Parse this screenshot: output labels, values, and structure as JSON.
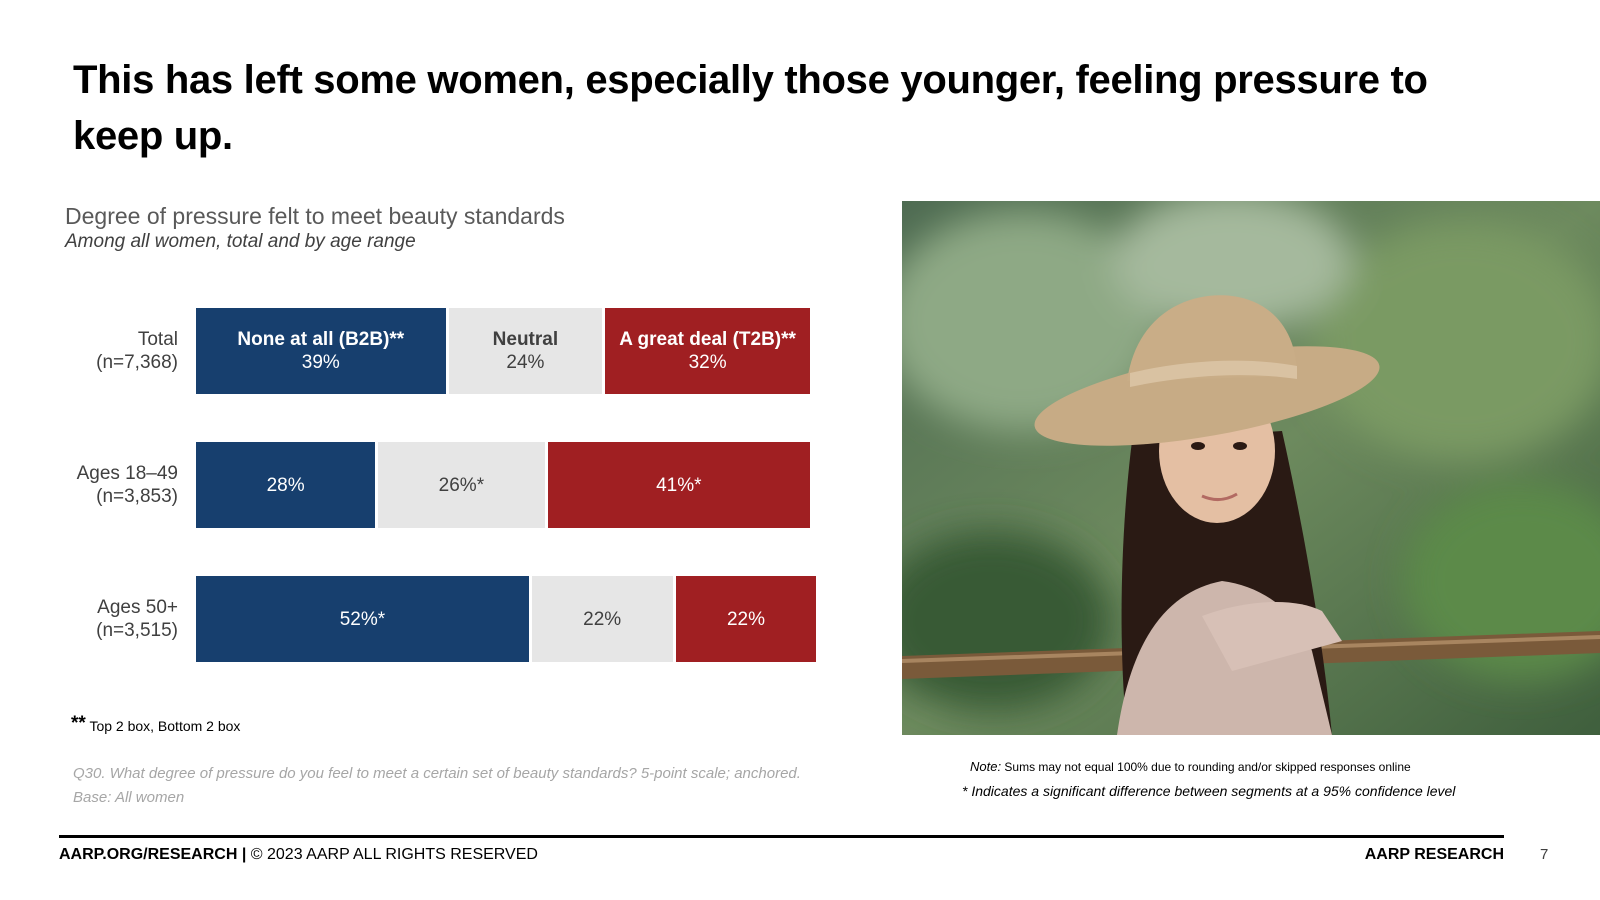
{
  "title": "This has left some women, especially those younger, feeling pressure to keep up.",
  "chart_data": {
    "type": "bar",
    "orientation": "horizontal-stacked",
    "title": "Degree of pressure felt to meet beauty standards",
    "subtitle": "Among all women, total and by age range",
    "categories": [
      "Total (n=7,368)",
      "Ages 18–49 (n=3,853)",
      "Ages 50+ (n=3,515)"
    ],
    "category_labels": [
      {
        "name": "Total",
        "n": "(n=7,368)"
      },
      {
        "name": "Ages 18–49",
        "n": "(n=3,853)"
      },
      {
        "name": "Ages 50+",
        "n": "(n=3,515)"
      }
    ],
    "series": [
      {
        "name": "None at all (B2B)**",
        "color": "#173f6e",
        "text_color": "#ffffff",
        "values": [
          39,
          28,
          52
        ],
        "labels": [
          "39%",
          "28%",
          "52%*"
        ]
      },
      {
        "name": "Neutral",
        "color": "#e6e6e6",
        "text_color": "#404040",
        "values": [
          24,
          26,
          22
        ],
        "labels": [
          "24%",
          "26%*",
          "22%"
        ]
      },
      {
        "name": "A great deal (T2B)**",
        "color": "#a01f22",
        "text_color": "#ffffff",
        "values": [
          32,
          41,
          22
        ],
        "labels": [
          "32%",
          "41%*",
          "22%"
        ]
      }
    ],
    "legend_placement": "inside-first-bar",
    "grid": false
  },
  "footnote_stars": "**",
  "footnote_text": "Top 2 box, Bottom 2 box",
  "question_text": "Q30. What degree of pressure do you feel to meet a certain set of beauty standards? 5-point scale; anchored.",
  "base_text": "Base: All women",
  "note_label": "Note:",
  "note_text": "Sums may not equal 100% due to rounding and/or skipped responses online",
  "significance_text": "* Indicates a significant difference between segments at a 95% confidence level",
  "footer": {
    "left_bold": "AARP.ORG/RESEARCH |",
    "left_rest": " © 2023 AARP ALL RIGHTS RESERVED",
    "right": "AARP RESEARCH",
    "page_number": "7"
  }
}
